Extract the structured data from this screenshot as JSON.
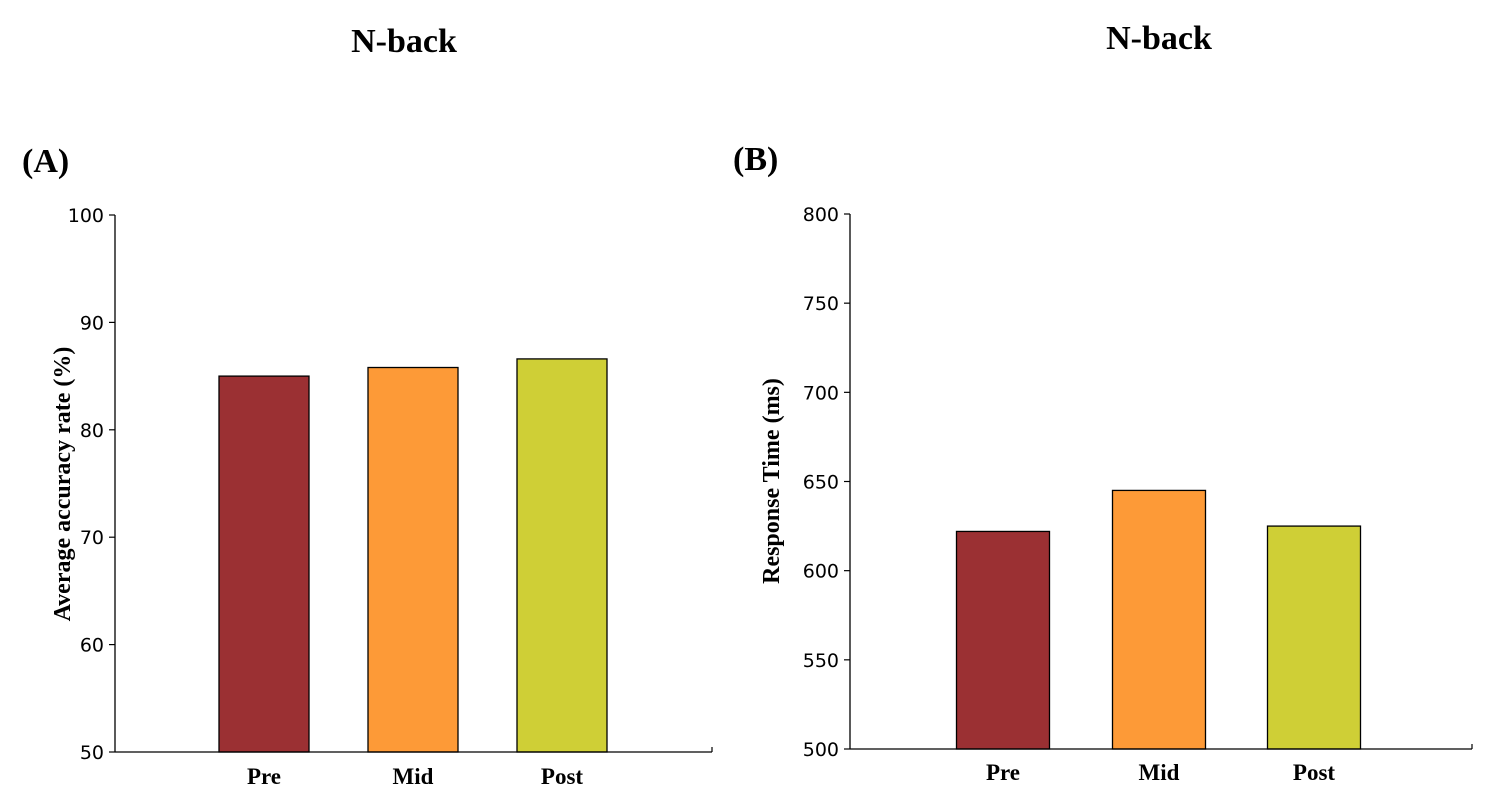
{
  "chart_data": [
    {
      "type": "bar",
      "panel_label": "(A)",
      "title": "N-back",
      "xlabel": "",
      "ylabel": "Average accuracy rate (%)",
      "categories": [
        "Pre",
        "Mid",
        "Post"
      ],
      "values": [
        85.0,
        85.8,
        86.6
      ],
      "ylim": [
        50,
        100
      ],
      "yticks": [
        50,
        60,
        70,
        80,
        90,
        100
      ],
      "bar_colors": [
        "#9b3033",
        "#fd9a37",
        "#cfcf36"
      ],
      "grid": false,
      "legend": "none"
    },
    {
      "type": "bar",
      "panel_label": "(B)",
      "title": "N-back",
      "xlabel": "",
      "ylabel": "Response Time (ms)",
      "categories": [
        "Pre",
        "Mid",
        "Post"
      ],
      "values": [
        622,
        645,
        625
      ],
      "ylim": [
        500,
        800
      ],
      "yticks": [
        500,
        550,
        600,
        650,
        700,
        750,
        800
      ],
      "bar_colors": [
        "#9b3033",
        "#fd9a37",
        "#cfcf36"
      ],
      "grid": false,
      "legend": "none"
    }
  ]
}
